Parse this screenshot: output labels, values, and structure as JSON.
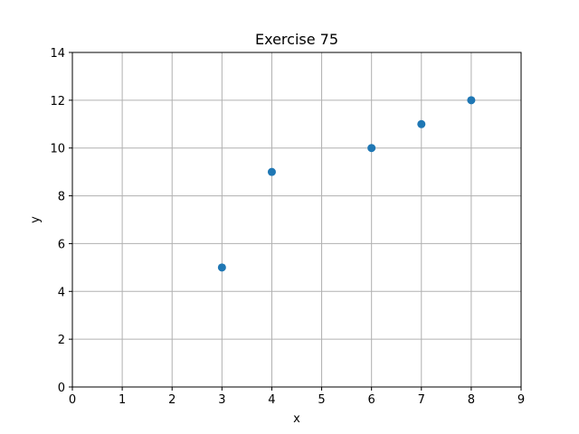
{
  "chart_data": {
    "type": "scatter",
    "title": "Exercise 75",
    "xlabel": "x",
    "ylabel": "y",
    "xlim": [
      0,
      9
    ],
    "ylim": [
      0,
      14
    ],
    "xticks": [
      "0",
      "1",
      "2",
      "3",
      "4",
      "5",
      "6",
      "7",
      "8",
      "9"
    ],
    "yticks": [
      "0",
      "2",
      "4",
      "6",
      "8",
      "10",
      "12",
      "14"
    ],
    "grid": true,
    "point_color": "#1f77b4",
    "grid_color": "#b0b0b0",
    "points": [
      {
        "x": 3,
        "y": 5
      },
      {
        "x": 4,
        "y": 9
      },
      {
        "x": 6,
        "y": 10
      },
      {
        "x": 7,
        "y": 11
      },
      {
        "x": 8,
        "y": 12
      }
    ]
  }
}
